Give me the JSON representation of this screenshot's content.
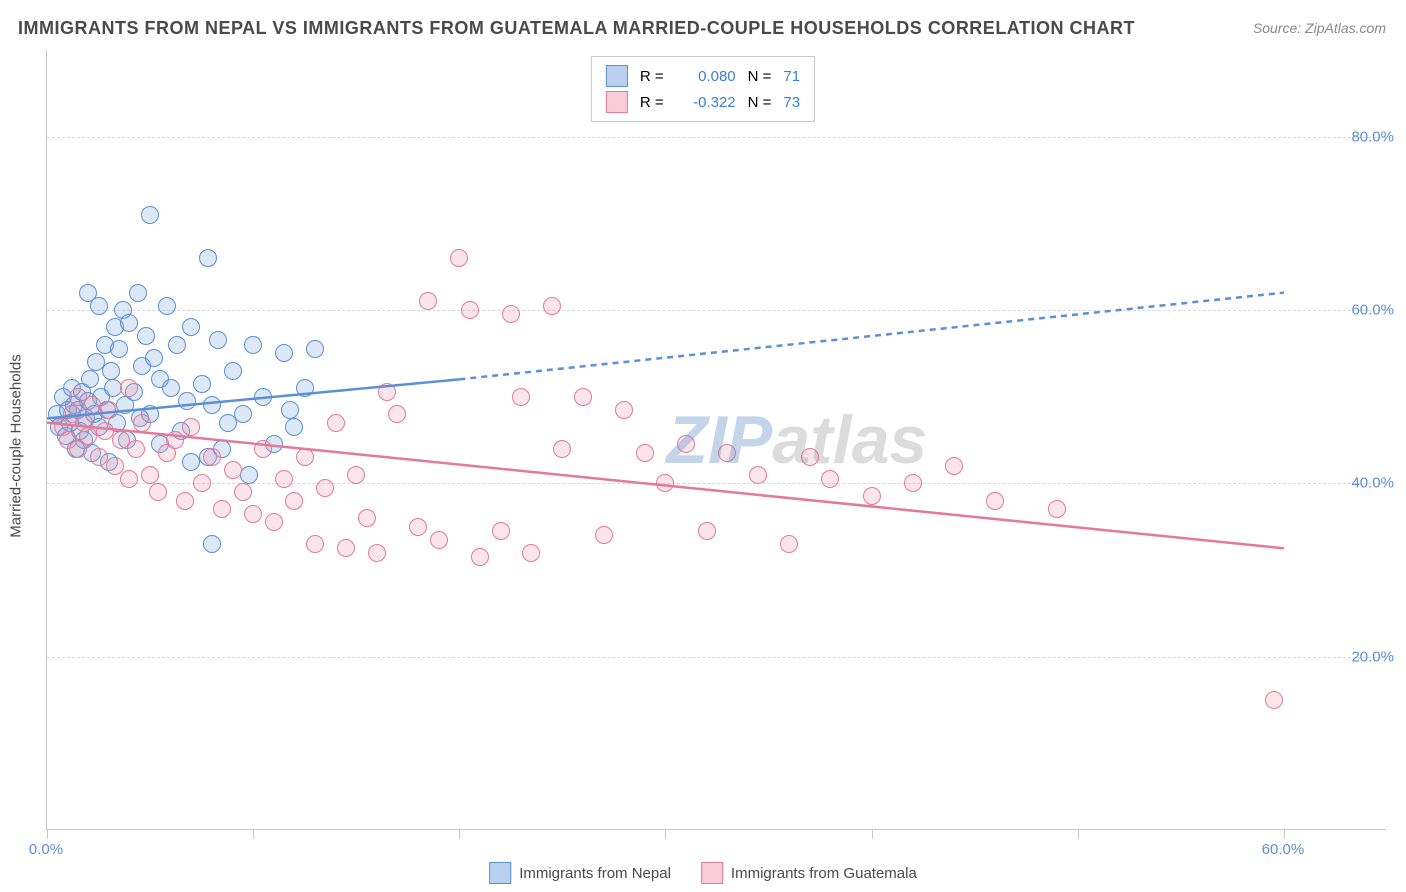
{
  "title": "IMMIGRANTS FROM NEPAL VS IMMIGRANTS FROM GUATEMALA MARRIED-COUPLE HOUSEHOLDS CORRELATION CHART",
  "source": "Source: ZipAtlas.com",
  "ylabel": "Married-couple Households",
  "watermark_parts": [
    "ZIP",
    "atlas"
  ],
  "chart": {
    "type": "scatter",
    "xlim": [
      0,
      65
    ],
    "ylim": [
      0,
      90
    ],
    "background_color": "#ffffff",
    "grid_color": "#d8d8d8",
    "grid_style": "dashed",
    "tick_color": "#c8c8c8",
    "axis_color": "#c8c8c8",
    "ytick_values": [
      20,
      40,
      60,
      80
    ],
    "ytick_labels": [
      "20.0%",
      "40.0%",
      "60.0%",
      "80.0%"
    ],
    "xtick_values": [
      0,
      10,
      20,
      30,
      40,
      50,
      60
    ],
    "xtick_labels_shown": {
      "0": "0.0%",
      "60": "60.0%"
    },
    "tick_label_color": "#5b8fd6",
    "tick_fontsize": 15,
    "title_fontsize": 18,
    "title_color": "#4a4a4a",
    "label_fontsize": 15,
    "label_color": "#4a4a4a",
    "marker_radius": 9,
    "marker_stroke_width": 1.5,
    "marker_fill_opacity": 0.25,
    "trend_line_width": 2.5,
    "trend_dash": "6,5"
  },
  "series": [
    {
      "name": "Immigrants from Nepal",
      "key": "nepal",
      "color_stroke": "#5b8fd6",
      "color_fill": "rgba(120,165,220,0.25)",
      "swatch_fill": "#b9d1ee",
      "swatch_border": "#5b8fd6",
      "R": "0.080",
      "N": "71",
      "trend": {
        "x_solid": [
          0,
          20
        ],
        "y_solid": [
          47.5,
          52.0
        ],
        "x_dash": [
          20,
          60
        ],
        "y_dash": [
          52.0,
          62.0
        ]
      },
      "points": [
        [
          0.5,
          48
        ],
        [
          0.6,
          46.5
        ],
        [
          0.8,
          50
        ],
        [
          0.9,
          45.5
        ],
        [
          1.0,
          48.5
        ],
        [
          1.1,
          47
        ],
        [
          1.2,
          51
        ],
        [
          1.3,
          49
        ],
        [
          1.4,
          44
        ],
        [
          1.5,
          48.5
        ],
        [
          1.6,
          46
        ],
        [
          1.7,
          50.5
        ],
        [
          1.8,
          45
        ],
        [
          1.9,
          47.5
        ],
        [
          2.0,
          49.5
        ],
        [
          2.1,
          52
        ],
        [
          2.2,
          43.5
        ],
        [
          2.3,
          48
        ],
        [
          2.4,
          54
        ],
        [
          2.5,
          46.5
        ],
        [
          2.6,
          50
        ],
        [
          2.8,
          56
        ],
        [
          2.9,
          48.5
        ],
        [
          3.0,
          42.5
        ],
        [
          3.1,
          53
        ],
        [
          3.3,
          58
        ],
        [
          3.4,
          47
        ],
        [
          3.5,
          55.5
        ],
        [
          3.7,
          60
        ],
        [
          3.9,
          45
        ],
        [
          4.0,
          58.5
        ],
        [
          4.2,
          50.5
        ],
        [
          4.4,
          62
        ],
        [
          4.6,
          53.5
        ],
        [
          4.8,
          57
        ],
        [
          5.0,
          48
        ],
        [
          5.0,
          71
        ],
        [
          5.2,
          54.5
        ],
        [
          5.5,
          44.5
        ],
        [
          5.8,
          60.5
        ],
        [
          6.0,
          51
        ],
        [
          6.3,
          56
        ],
        [
          6.5,
          46
        ],
        [
          7.0,
          42.5
        ],
        [
          7.0,
          58
        ],
        [
          7.5,
          51.5
        ],
        [
          7.8,
          66
        ],
        [
          8.0,
          49
        ],
        [
          8.0,
          33
        ],
        [
          8.3,
          56.5
        ],
        [
          8.5,
          44
        ],
        [
          9.0,
          53
        ],
        [
          9.5,
          48
        ],
        [
          10.0,
          56
        ],
        [
          10.5,
          50
        ],
        [
          11.0,
          44.5
        ],
        [
          11.5,
          55
        ],
        [
          12.0,
          46.5
        ],
        [
          12.5,
          51
        ],
        [
          13.0,
          55.5
        ],
        [
          2.0,
          62
        ],
        [
          2.5,
          60.5
        ],
        [
          3.2,
          51
        ],
        [
          3.8,
          49
        ],
        [
          4.5,
          47.5
        ],
        [
          5.5,
          52
        ],
        [
          6.8,
          49.5
        ],
        [
          7.8,
          43
        ],
        [
          8.8,
          47
        ],
        [
          9.8,
          41
        ],
        [
          11.8,
          48.5
        ]
      ]
    },
    {
      "name": "Immigrants from Guatemala",
      "key": "guatemala",
      "color_stroke": "#e27a9a",
      "color_fill": "rgba(235,150,175,0.25)",
      "swatch_fill": "#f6cdd9",
      "swatch_border": "#e27a9a",
      "R": "-0.322",
      "N": "73",
      "trend": {
        "x_solid": [
          0,
          60
        ],
        "y_solid": [
          47.0,
          32.5
        ],
        "x_dash": null,
        "y_dash": null
      },
      "points": [
        [
          0.8,
          46.5
        ],
        [
          1.0,
          45
        ],
        [
          1.2,
          48
        ],
        [
          1.5,
          44
        ],
        [
          1.8,
          47
        ],
        [
          2.0,
          45.5
        ],
        [
          2.2,
          49
        ],
        [
          2.5,
          43
        ],
        [
          2.8,
          46
        ],
        [
          3.0,
          48.5
        ],
        [
          3.3,
          42
        ],
        [
          3.6,
          45
        ],
        [
          4.0,
          40.5
        ],
        [
          4.3,
          44
        ],
        [
          4.6,
          47
        ],
        [
          5.0,
          41
        ],
        [
          5.4,
          39
        ],
        [
          5.8,
          43.5
        ],
        [
          6.2,
          45
        ],
        [
          6.7,
          38
        ],
        [
          7.0,
          46.5
        ],
        [
          7.5,
          40
        ],
        [
          8.0,
          43
        ],
        [
          8.5,
          37
        ],
        [
          9.0,
          41.5
        ],
        [
          9.5,
          39
        ],
        [
          10.0,
          36.5
        ],
        [
          10.5,
          44
        ],
        [
          11.0,
          35.5
        ],
        [
          11.5,
          40.5
        ],
        [
          12.0,
          38
        ],
        [
          12.5,
          43
        ],
        [
          13.0,
          33
        ],
        [
          13.5,
          39.5
        ],
        [
          14.0,
          47
        ],
        [
          14.5,
          32.5
        ],
        [
          15.0,
          41
        ],
        [
          15.5,
          36
        ],
        [
          16.0,
          32
        ],
        [
          16.5,
          50.5
        ],
        [
          17.0,
          48
        ],
        [
          18.0,
          35
        ],
        [
          18.5,
          61
        ],
        [
          19.0,
          33.5
        ],
        [
          20.0,
          66
        ],
        [
          20.5,
          60
        ],
        [
          21.0,
          31.5
        ],
        [
          22.0,
          34.5
        ],
        [
          22.5,
          59.5
        ],
        [
          23.0,
          50
        ],
        [
          23.5,
          32
        ],
        [
          24.5,
          60.5
        ],
        [
          25.0,
          44
        ],
        [
          26.0,
          50
        ],
        [
          27.0,
          34
        ],
        [
          28.0,
          48.5
        ],
        [
          29.0,
          43.5
        ],
        [
          30.0,
          40
        ],
        [
          31.0,
          44.5
        ],
        [
          32.0,
          34.5
        ],
        [
          33.0,
          43.5
        ],
        [
          34.5,
          41
        ],
        [
          36.0,
          33
        ],
        [
          37.0,
          43
        ],
        [
          38.0,
          40.5
        ],
        [
          40.0,
          38.5
        ],
        [
          42.0,
          40
        ],
        [
          44.0,
          42
        ],
        [
          46.0,
          38
        ],
        [
          49.0,
          37
        ],
        [
          1.5,
          50
        ],
        [
          4.0,
          51
        ],
        [
          59.5,
          15
        ]
      ]
    }
  ],
  "legend_top": {
    "R_label": "R =",
    "N_label": "N =",
    "value_color": "#3d7fd6",
    "text_color": "#4a4a4a"
  },
  "legend_bottom_labels": [
    "Immigrants from Nepal",
    "Immigrants from Guatemala"
  ]
}
